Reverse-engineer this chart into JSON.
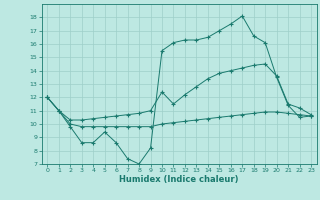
{
  "xlabel": "Humidex (Indice chaleur)",
  "xlim": [
    -0.5,
    23.5
  ],
  "ylim": [
    7,
    19
  ],
  "yticks": [
    7,
    8,
    9,
    10,
    11,
    12,
    13,
    14,
    15,
    16,
    17,
    18
  ],
  "xticks": [
    0,
    1,
    2,
    3,
    4,
    5,
    6,
    7,
    8,
    9,
    10,
    11,
    12,
    13,
    14,
    15,
    16,
    17,
    18,
    19,
    20,
    21,
    22,
    23
  ],
  "bg_color": "#bde8e2",
  "grid_color": "#9ecfc9",
  "line_color": "#1a7a6e",
  "line1_y": [
    12.0,
    11.0,
    9.8,
    8.6,
    8.6,
    9.4,
    8.6,
    7.4,
    7.0,
    8.2,
    15.5,
    16.1,
    16.3,
    16.3,
    16.5,
    17.0,
    17.5,
    18.1,
    16.6,
    16.1,
    13.5,
    11.4,
    10.5,
    10.6
  ],
  "line2_y": [
    12.0,
    11.0,
    10.3,
    10.3,
    10.4,
    10.5,
    10.6,
    10.7,
    10.8,
    11.0,
    12.4,
    11.5,
    12.2,
    12.8,
    13.4,
    13.8,
    14.0,
    14.2,
    14.4,
    14.5,
    13.6,
    11.5,
    11.2,
    10.7
  ],
  "line3_y": [
    12.0,
    11.0,
    10.0,
    9.8,
    9.8,
    9.8,
    9.8,
    9.8,
    9.8,
    9.8,
    10.0,
    10.1,
    10.2,
    10.3,
    10.4,
    10.5,
    10.6,
    10.7,
    10.8,
    10.9,
    10.9,
    10.8,
    10.7,
    10.6
  ]
}
